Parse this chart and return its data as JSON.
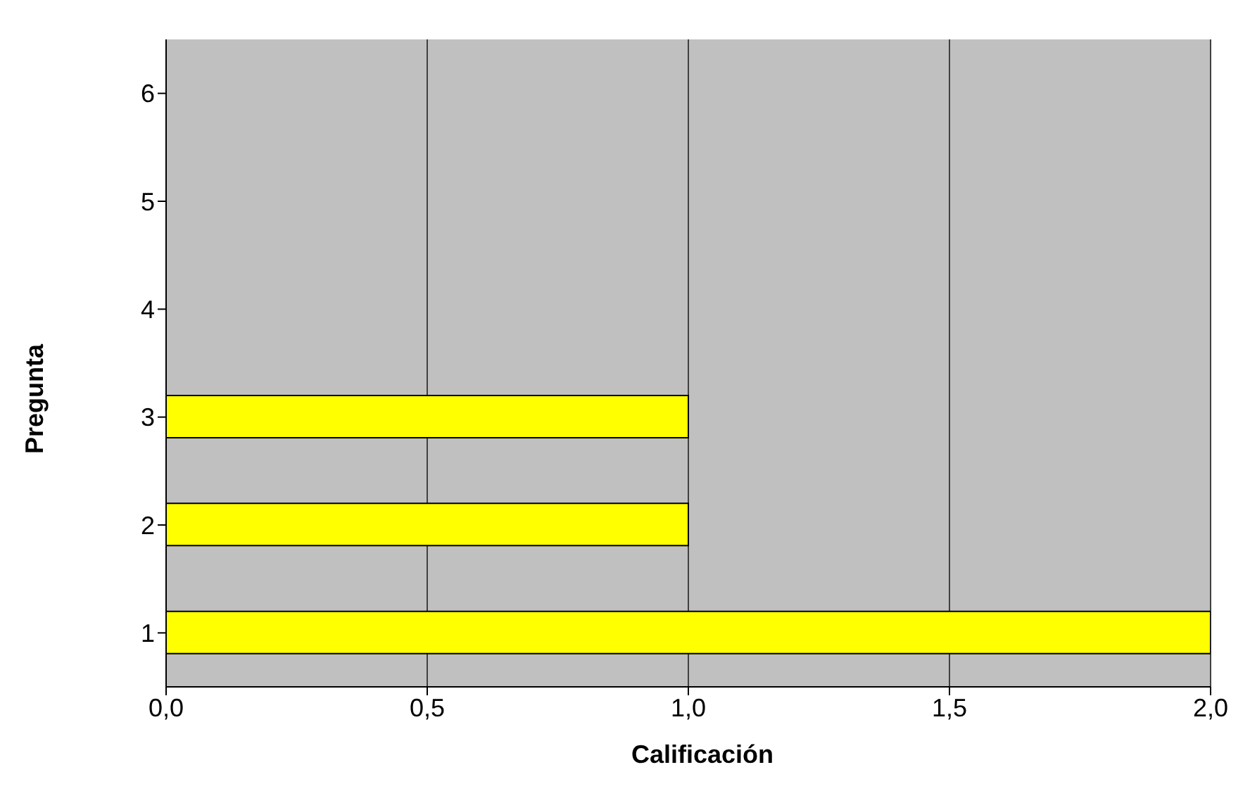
{
  "chart_data": {
    "type": "bar",
    "orientation": "horizontal",
    "xlabel": "Calificación",
    "ylabel": "Pregunta",
    "categories": [
      "6",
      "5",
      "4",
      "3",
      "2",
      "1"
    ],
    "values": [
      0,
      0,
      0,
      1,
      1,
      2
    ],
    "color": "#ffff00",
    "xlim": [
      0,
      2
    ],
    "xticks": [
      {
        "value": 0,
        "label": "0,0"
      },
      {
        "value": 0.5,
        "label": "0,5"
      },
      {
        "value": 1,
        "label": "1,0"
      },
      {
        "value": 1.5,
        "label": "1,5"
      },
      {
        "value": 2,
        "label": "2,0"
      }
    ],
    "grid": "x"
  }
}
